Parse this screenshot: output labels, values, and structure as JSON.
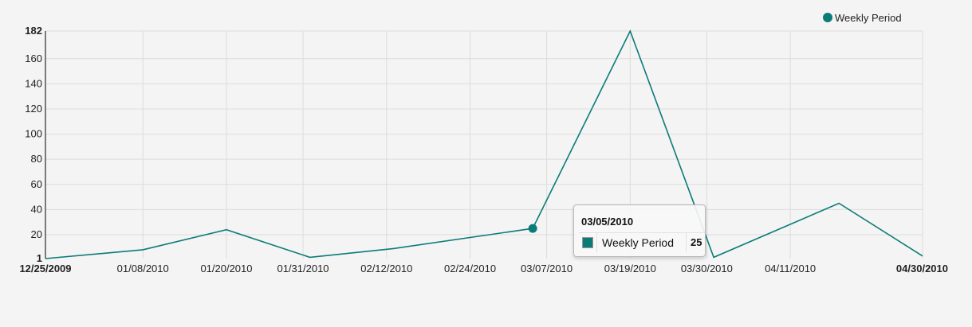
{
  "chart_data": {
    "type": "line",
    "title": "",
    "xlabel": "",
    "ylabel": "",
    "x_axis": {
      "start": "12/25/2009",
      "end": "04/30/2010",
      "ticks": [
        "12/25/2009",
        "01/08/2010",
        "01/20/2010",
        "01/31/2010",
        "02/12/2010",
        "02/24/2010",
        "03/07/2010",
        "03/19/2010",
        "03/30/2010",
        "04/11/2010",
        "04/30/2010"
      ],
      "bold_ticks": [
        "12/25/2009",
        "04/30/2010"
      ]
    },
    "y_axis": {
      "min": 1,
      "max": 182,
      "ticks": [
        1,
        20,
        40,
        60,
        80,
        100,
        120,
        140,
        160,
        182
      ],
      "bold_ticks": [
        1,
        182
      ]
    },
    "grid": true,
    "legend": {
      "position": "top-right"
    },
    "series": [
      {
        "name": "Weekly Period",
        "color": "#0b7b78",
        "points": [
          {
            "x": "12/25/2009",
            "y": 1
          },
          {
            "x": "01/08/2010",
            "y": 8
          },
          {
            "x": "01/20/2010",
            "y": 24
          },
          {
            "x": "02/01/2010",
            "y": 2
          },
          {
            "x": "02/13/2010",
            "y": 9
          },
          {
            "x": "03/05/2010",
            "y": 25
          },
          {
            "x": "03/19/2010",
            "y": 182
          },
          {
            "x": "03/31/2010",
            "y": 2
          },
          {
            "x": "04/18/2010",
            "y": 45
          },
          {
            "x": "04/30/2010",
            "y": 3
          }
        ]
      }
    ],
    "highlight": {
      "x": "03/05/2010",
      "series": "Weekly Period",
      "value": "25"
    }
  }
}
